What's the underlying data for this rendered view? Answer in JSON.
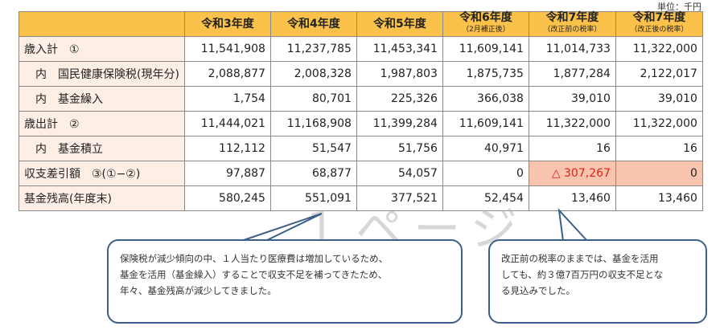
{
  "unit": "単位：千円",
  "table": {
    "headers": [
      {
        "main": "",
        "sub": ""
      },
      {
        "main": "令和3年度",
        "sub": ""
      },
      {
        "main": "令和4年度",
        "sub": ""
      },
      {
        "main": "令和5年度",
        "sub": ""
      },
      {
        "main": "令和6年度",
        "sub": "（2月補正後）"
      },
      {
        "main": "令和7年度",
        "sub": "（改正前の税率）"
      },
      {
        "main": "令和7年度",
        "sub": "（改正後の税率）"
      }
    ],
    "rows": [
      {
        "label": "歳入計　①",
        "values": [
          "11,541,908",
          "11,237,785",
          "11,453,341",
          "11,609,141",
          "11,014,733",
          "11,322,000"
        ]
      },
      {
        "label": "内　国民健康保険税(現年分)",
        "values": [
          "2,088,877",
          "2,008,328",
          "1,987,803",
          "1,875,735",
          "1,877,284",
          "2,122,017"
        ]
      },
      {
        "label": "内　基金繰入",
        "values": [
          "1,754",
          "80,701",
          "225,326",
          "366,038",
          "39,010",
          "39,010"
        ]
      },
      {
        "label": "歳出計　②",
        "values": [
          "11,444,021",
          "11,168,908",
          "11,399,284",
          "11,609,141",
          "11,322,000",
          "11,322,000"
        ]
      },
      {
        "label": "内　基金積立",
        "values": [
          "112,112",
          "51,547",
          "51,756",
          "40,971",
          "16",
          "16"
        ]
      },
      {
        "label": "収支差引額　③(①−②)",
        "values": [
          "97,887",
          "68,877",
          "54,057",
          "0",
          "△ 307,267",
          "0"
        ]
      },
      {
        "label": "基金残高(年度末)",
        "values": [
          "580,245",
          "551,091",
          "377,521",
          "52,454",
          "13,460",
          "13,460"
        ]
      }
    ]
  },
  "watermark": "１ページ",
  "notes": {
    "left": [
      "保険税が減少傾向の中、１人当たり医療費は増加しているため、",
      "基金を活用（基金繰入）することで収支不足を補ってきたため、",
      "年々、基金残高が減少してきました。"
    ],
    "right": [
      "改正前の税率のままでは、基金を活用",
      "しても、約３億7百万円の収支不足とな",
      "る見込みでした。"
    ]
  }
}
